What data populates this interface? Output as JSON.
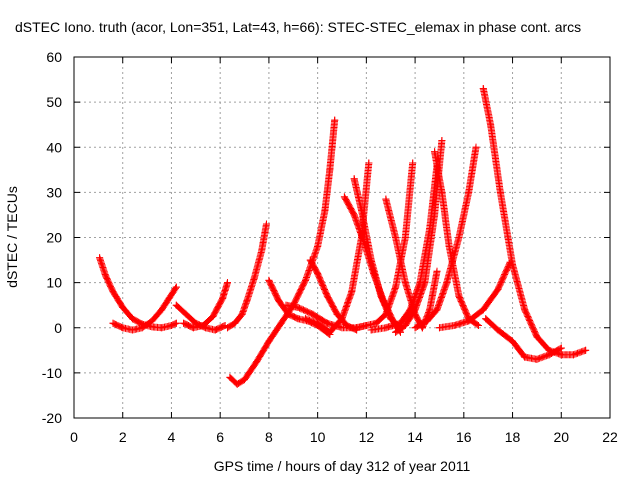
{
  "chart_data": {
    "type": "scatter",
    "title": "dSTEC Iono. truth (acor, Lon=351, Lat=43, h=66): STEC-STEC_elemax in phase cont. arcs",
    "xlabel": "GPS time / hours of day 312 of year 2011",
    "ylabel": "dSTEC  / TECUs",
    "xlim": [
      0,
      22
    ],
    "ylim": [
      -20,
      60
    ],
    "xticks": [
      0,
      2,
      4,
      6,
      8,
      10,
      12,
      14,
      16,
      18,
      20,
      22
    ],
    "yticks": [
      -20,
      -10,
      0,
      10,
      20,
      30,
      40,
      50,
      60
    ],
    "grid": true,
    "marker": "+",
    "color": "#ff0000",
    "series": [
      {
        "x": [
          1.05,
          1.3,
          1.6,
          2.0,
          2.4,
          2.8,
          3.2,
          3.6,
          4.0,
          4.2
        ],
        "y": [
          15.5,
          11.5,
          8.0,
          4.5,
          2.0,
          0.8,
          0.2,
          0.0,
          0.5,
          1.0
        ]
      },
      {
        "x": [
          1.6,
          2.0,
          2.4,
          2.8,
          3.2,
          3.6,
          3.9,
          4.2
        ],
        "y": [
          1.0,
          0.0,
          -0.5,
          0.0,
          1.5,
          4.0,
          6.5,
          9.0
        ]
      },
      {
        "x": [
          4.2,
          4.6,
          5.0,
          5.4,
          5.8,
          6.2
        ],
        "y": [
          5.0,
          3.0,
          1.0,
          0.0,
          -0.5,
          0.5
        ]
      },
      {
        "x": [
          4.5,
          4.9,
          5.3,
          5.7,
          6.1,
          6.3
        ],
        "y": [
          1.0,
          0.0,
          0.5,
          2.5,
          6.5,
          10.0
        ]
      },
      {
        "x": [
          6.3,
          6.6,
          6.9,
          7.1,
          7.4,
          7.7,
          7.9
        ],
        "y": [
          0.0,
          1.0,
          3.0,
          6.0,
          11.0,
          17.0,
          23.0
        ]
      },
      {
        "x": [
          6.4,
          6.7,
          7.0,
          7.5,
          8.0,
          8.5,
          9.0,
          9.5,
          10.0,
          10.3,
          10.5,
          10.7
        ],
        "y": [
          -11.0,
          -12.5,
          -11.5,
          -7.5,
          -3.0,
          1.0,
          5.0,
          10.5,
          18.0,
          26.0,
          35.0,
          46.0
        ]
      },
      {
        "x": [
          8.0,
          8.4,
          8.8,
          9.2,
          9.6,
          10.0,
          10.5
        ],
        "y": [
          10.5,
          6.0,
          3.0,
          2.0,
          1.5,
          0.5,
          -1.5
        ]
      },
      {
        "x": [
          8.7,
          9.2,
          9.8,
          10.4,
          11.0,
          11.6,
          12.0
        ],
        "y": [
          5.0,
          4.5,
          3.0,
          1.0,
          0.0,
          0.0,
          0.5
        ]
      },
      {
        "x": [
          9.7,
          10.0,
          10.4,
          10.8,
          11.2,
          11.6
        ],
        "y": [
          15.0,
          12.0,
          7.0,
          3.0,
          0.5,
          -0.5
        ]
      },
      {
        "x": [
          9.5,
          10.0,
          10.5,
          11.0,
          11.4,
          11.8,
          12.1
        ],
        "y": [
          2.0,
          1.0,
          -1.0,
          2.0,
          8.0,
          20.0,
          36.5
        ]
      },
      {
        "x": [
          11.1,
          11.5,
          11.9,
          12.3,
          12.7,
          13.1,
          13.4
        ],
        "y": [
          29.0,
          25.0,
          19.0,
          12.0,
          6.0,
          1.5,
          -1.0
        ]
      },
      {
        "x": [
          11.5,
          11.8,
          12.2,
          12.6,
          13.0,
          13.4
        ],
        "y": [
          33.0,
          26.0,
          15.0,
          7.0,
          2.0,
          0.0
        ]
      },
      {
        "x": [
          11.6,
          12.0,
          12.4,
          12.8,
          13.2,
          13.6,
          13.9
        ],
        "y": [
          0.0,
          0.5,
          1.0,
          3.0,
          9.0,
          20.0,
          36.5
        ]
      },
      {
        "x": [
          12.8,
          13.2,
          13.6,
          14.0,
          14.3
        ],
        "y": [
          28.5,
          20.0,
          10.0,
          3.0,
          0.0
        ]
      },
      {
        "x": [
          12.2,
          12.8,
          13.4,
          13.8,
          14.2,
          14.6,
          14.9
        ],
        "y": [
          -0.5,
          0.0,
          1.0,
          4.0,
          10.0,
          22.0,
          36.0
        ]
      },
      {
        "x": [
          13.2,
          13.6,
          14.0,
          14.4,
          14.8,
          15.1
        ],
        "y": [
          -1.0,
          0.5,
          4.0,
          10.0,
          25.0,
          41.5
        ]
      },
      {
        "x": [
          14.8,
          15.1,
          15.4,
          15.8,
          16.2,
          16.6
        ],
        "y": [
          39.0,
          30.0,
          18.0,
          7.0,
          2.0,
          0.5
        ]
      },
      {
        "x": [
          14.0,
          14.5,
          14.9,
          15.3,
          15.8,
          16.2,
          16.5
        ],
        "y": [
          0.0,
          1.5,
          4.0,
          10.0,
          20.0,
          30.0,
          40.0
        ]
      },
      {
        "x": [
          14.3,
          14.6,
          14.9
        ],
        "y": [
          0.0,
          4.0,
          12.5
        ]
      },
      {
        "x": [
          15.0,
          15.6,
          16.2,
          16.8,
          17.4,
          17.9
        ],
        "y": [
          0.0,
          0.5,
          1.5,
          4.0,
          8.5,
          14.5
        ]
      },
      {
        "x": [
          16.8,
          17.1,
          17.5,
          18.0,
          18.5,
          19.0,
          19.5,
          20.0,
          20.5,
          21.0
        ],
        "y": [
          53.0,
          45.0,
          30.0,
          14.0,
          4.0,
          -2.0,
          -5.0,
          -6.0,
          -6.0,
          -5.0
        ]
      },
      {
        "x": [
          16.9,
          17.4,
          18.0,
          18.5,
          19.0,
          19.5,
          20.0
        ],
        "y": [
          2.0,
          -0.5,
          -3.0,
          -6.5,
          -7.0,
          -6.0,
          -4.5
        ]
      }
    ]
  }
}
